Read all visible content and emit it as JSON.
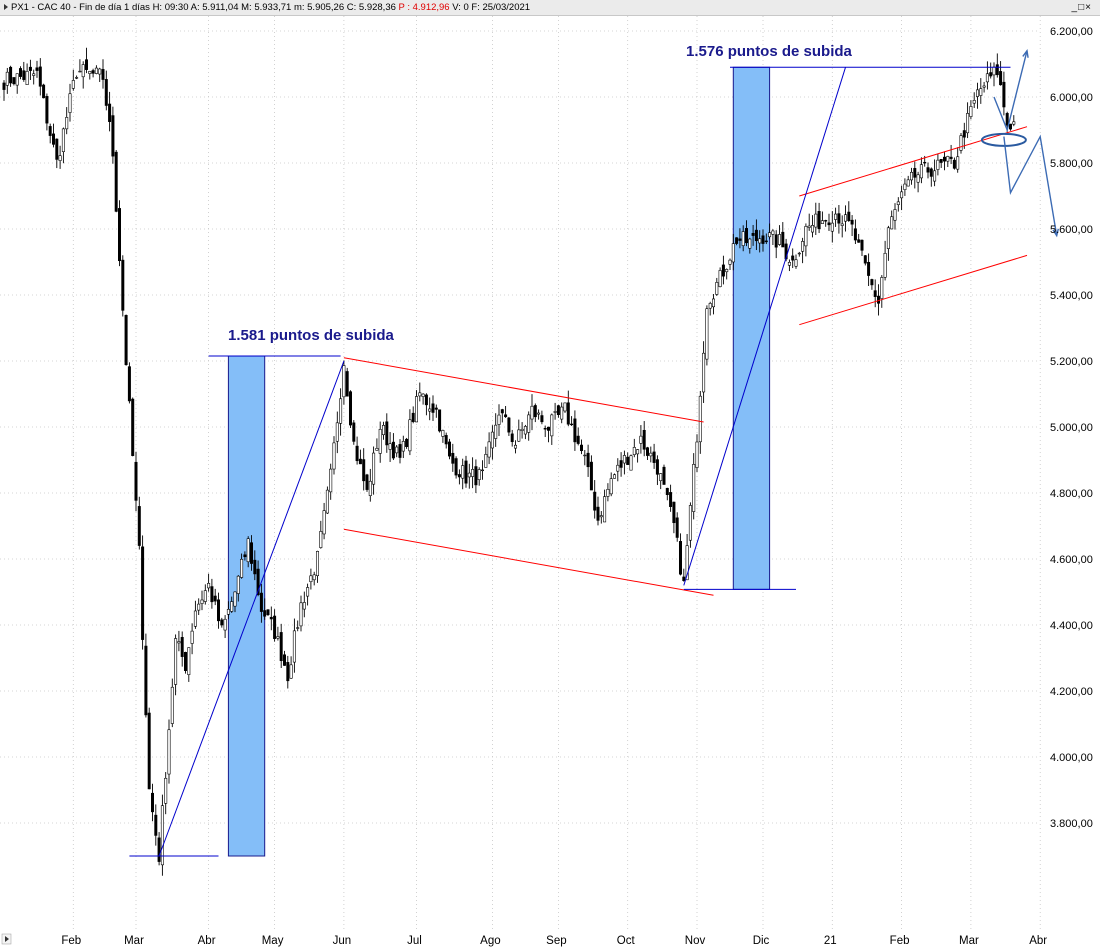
{
  "titlebar": {
    "symbol": "PX1",
    "name": "CAC 40",
    "period": "Fin de día 1 días",
    "hour": "H: 09:30",
    "open": "A: 5.911,04",
    "high": "M: 5.933,71",
    "low": "m: 5.905,26",
    "close": "C: 5.928,36",
    "p": "P : 4.912,96",
    "v": "V: 0",
    "date": "F: 25/03/2021"
  },
  "window_controls": {
    "minimize": "_",
    "maximize": "□",
    "close": "×"
  },
  "chart_data": {
    "type": "candlestick",
    "title": "",
    "xlabel": "",
    "ylabel": "",
    "ylim": [
      3560,
      6250
    ],
    "grid": true,
    "y_ticks": [
      3800,
      4000,
      4200,
      4400,
      4600,
      4800,
      5000,
      5200,
      5400,
      5600,
      5800,
      6000,
      6200
    ],
    "y_tick_labels": [
      "3.800,00",
      "4.000,00",
      "4.200,00",
      "4.400,00",
      "4.600,00",
      "4.800,00",
      "5.000,00",
      "5.200,00",
      "5.400,00",
      "5.600,00",
      "5.800,00",
      "6.000,00",
      "6.200,00"
    ],
    "x_labels": [
      "Feb",
      "Mar",
      "Abr",
      "May",
      "Jun",
      "Jul",
      "Ago",
      "Sep",
      "Oct",
      "Nov",
      "Dic",
      "21",
      "Feb",
      "Mar",
      "Abr"
    ],
    "x_label_index": [
      21,
      40,
      62,
      82,
      103,
      125,
      148,
      168,
      189,
      210,
      230,
      251,
      272,
      293,
      314
    ],
    "anchors": [
      [
        0,
        6050
      ],
      [
        10,
        6070
      ],
      [
        16,
        5800
      ],
      [
        22,
        6080
      ],
      [
        30,
        6060
      ],
      [
        33,
        5830
      ],
      [
        37,
        5200
      ],
      [
        41,
        4620
      ],
      [
        44,
        3900
      ],
      [
        47,
        3700
      ],
      [
        52,
        4350
      ],
      [
        55,
        4280
      ],
      [
        58,
        4450
      ],
      [
        62,
        4520
      ],
      [
        66,
        4380
      ],
      [
        70,
        4500
      ],
      [
        74,
        4650
      ],
      [
        78,
        4450
      ],
      [
        82,
        4380
      ],
      [
        86,
        4250
      ],
      [
        90,
        4460
      ],
      [
        95,
        4600
      ],
      [
        99,
        4850
      ],
      [
        103,
        5200
      ],
      [
        106,
        4950
      ],
      [
        110,
        4800
      ],
      [
        114,
        5000
      ],
      [
        120,
        4900
      ],
      [
        126,
        5100
      ],
      [
        131,
        5050
      ],
      [
        135,
        4900
      ],
      [
        140,
        4850
      ],
      [
        145,
        4850
      ],
      [
        150,
        5050
      ],
      [
        155,
        4950
      ],
      [
        160,
        5050
      ],
      [
        165,
        5000
      ],
      [
        170,
        5050
      ],
      [
        176,
        4900
      ],
      [
        180,
        4720
      ],
      [
        184,
        4840
      ],
      [
        188,
        4900
      ],
      [
        193,
        4960
      ],
      [
        198,
        4880
      ],
      [
        203,
        4700
      ],
      [
        206,
        4520
      ],
      [
        210,
        4980
      ],
      [
        213,
        5380
      ],
      [
        217,
        5450
      ],
      [
        222,
        5570
      ],
      [
        226,
        5560
      ],
      [
        230,
        5580
      ],
      [
        235,
        5560
      ],
      [
        239,
        5500
      ],
      [
        243,
        5600
      ],
      [
        248,
        5630
      ],
      [
        252,
        5650
      ],
      [
        257,
        5600
      ],
      [
        262,
        5450
      ],
      [
        265,
        5380
      ],
      [
        268,
        5600
      ],
      [
        272,
        5700
      ],
      [
        276,
        5760
      ],
      [
        280,
        5780
      ],
      [
        284,
        5790
      ],
      [
        288,
        5800
      ],
      [
        291,
        5900
      ],
      [
        295,
        6010
      ],
      [
        298,
        6050
      ],
      [
        301,
        6080
      ],
      [
        304,
        5920
      ],
      [
        306,
        5920
      ]
    ],
    "annotations": [
      {
        "text": "1.581 puntos de subida",
        "type": "label"
      },
      {
        "text": "1.576 puntos de subida",
        "type": "label"
      }
    ],
    "drawn_lines": [
      {
        "color": "#ff0000",
        "points": [
          [
            103,
            5210
          ],
          [
            212,
            5015
          ]
        ]
      },
      {
        "color": "#ff0000",
        "points": [
          [
            103,
            4690
          ],
          [
            215,
            4490
          ]
        ]
      },
      {
        "color": "#ff0000",
        "points": [
          [
            241,
            5700
          ],
          [
            310,
            5910
          ]
        ]
      },
      {
        "color": "#ff0000",
        "points": [
          [
            241,
            5310
          ],
          [
            310,
            5520
          ]
        ]
      },
      {
        "color": "#0000cc",
        "points": [
          [
            47,
            3700
          ],
          [
            103,
            5200
          ]
        ]
      },
      {
        "color": "#0000cc",
        "points": [
          [
            206,
            4520
          ],
          [
            255,
            6090
          ]
        ]
      },
      {
        "color": "#0000cc",
        "points": [
          [
            38,
            3700
          ],
          [
            65,
            3700
          ]
        ]
      },
      {
        "color": "#0000cc",
        "points": [
          [
            62,
            5215
          ],
          [
            102,
            5215
          ]
        ]
      },
      {
        "color": "#0000cc",
        "points": [
          [
            206,
            4508
          ],
          [
            240,
            4508
          ]
        ]
      },
      {
        "color": "#0000cc",
        "points": [
          [
            220,
            6090
          ],
          [
            305,
            6090
          ]
        ]
      }
    ],
    "highlight_bars": [
      {
        "index_from": 68,
        "index_to": 79,
        "low": 3700,
        "high": 5215
      },
      {
        "index_from": 221,
        "index_to": 232,
        "low": 4508,
        "high": 6090
      }
    ]
  }
}
